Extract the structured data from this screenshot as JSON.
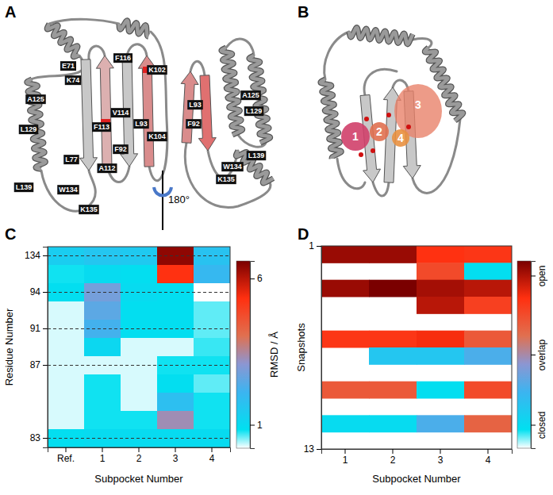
{
  "panels": {
    "a": {
      "label": "A",
      "left_residues": [
        "E71",
        "K74",
        "F116",
        "K102",
        "A125",
        "V114",
        "L93",
        "F113",
        "K104",
        "L129",
        "F92",
        "L77",
        "A112",
        "L139",
        "W134",
        "K135"
      ],
      "right_residues": [
        "A125",
        "L93",
        "L129",
        "F92",
        "L139",
        "W134",
        "K135"
      ],
      "rotation": "180°"
    },
    "b": {
      "label": "B",
      "subpockets": [
        "1",
        "2",
        "3",
        "4"
      ]
    }
  },
  "chart_data": [
    {
      "type": "heatmap",
      "title": "C",
      "x_label": "Subpocket Number",
      "y_label": "Residue Number",
      "categories": [
        "Ref.",
        "1",
        "2",
        "3",
        "4"
      ],
      "y_categories": [
        134,
        null,
        94,
        null,
        91,
        null,
        87,
        null,
        null,
        null,
        83
      ],
      "cells": [
        [
          1.4,
          1.6,
          1.5,
          6.4,
          1.7
        ],
        [
          0.8,
          1.0,
          0.9,
          5.3,
          2.0
        ],
        [
          0.9,
          2.8,
          1.0,
          0.9,
          0.2
        ],
        [
          0.3,
          2.5,
          0.9,
          0.9,
          0.6
        ],
        [
          0.3,
          2.2,
          0.9,
          0.9,
          0.6
        ],
        [
          0.3,
          1.1,
          0.3,
          0.3,
          0.7
        ],
        [
          0.3,
          0.3,
          0.3,
          0.8,
          0.8
        ],
        [
          0.3,
          0.8,
          0.3,
          0.9,
          0.6
        ],
        [
          0.3,
          0.8,
          0.3,
          1.8,
          0.8
        ],
        [
          0.3,
          0.8,
          0.8,
          3.3,
          0.8
        ],
        [
          0.9,
          1.0,
          1.0,
          1.0,
          1.0
        ]
      ],
      "colorbar": {
        "label": "RMSD / Å",
        "range": [
          0.2,
          6.6
        ],
        "ticks": [
          1,
          6
        ]
      },
      "grid": true
    },
    {
      "type": "heatmap",
      "title": "D",
      "x_label": "Subpocket Number",
      "y_label": "Snapshots",
      "categories": [
        "1",
        "2",
        "3",
        "4"
      ],
      "y": [
        1,
        2,
        3,
        4,
        5,
        6,
        7,
        8,
        9,
        10,
        11,
        12
      ],
      "ylim": [
        1,
        13
      ],
      "yticks": [
        1,
        13
      ],
      "cells": [
        [
          6.3,
          6.3,
          5.3,
          5.2
        ],
        [
          null,
          null,
          4.8,
          0.9
        ],
        [
          6.3,
          6.6,
          6.2,
          6.0
        ],
        [
          null,
          null,
          6.0,
          5.0
        ],
        [
          null,
          null,
          null,
          null
        ],
        [
          5.2,
          5.2,
          5.4,
          4.5
        ],
        [
          null,
          1.6,
          1.6,
          2.3
        ],
        [
          null,
          null,
          null,
          null
        ],
        [
          4.5,
          4.5,
          0.9,
          4.8
        ],
        [
          null,
          null,
          null,
          null
        ],
        [
          1.0,
          1.0,
          2.3,
          4.3
        ],
        [
          null,
          null,
          null,
          null
        ]
      ],
      "colorbar": {
        "range": [
          0.2,
          6.6
        ],
        "ticks": [
          {
            "value": 6.1,
            "label": "open"
          },
          {
            "value": 3.4,
            "label": "overlap"
          },
          {
            "value": 1.0,
            "label": "closed"
          }
        ]
      }
    }
  ]
}
